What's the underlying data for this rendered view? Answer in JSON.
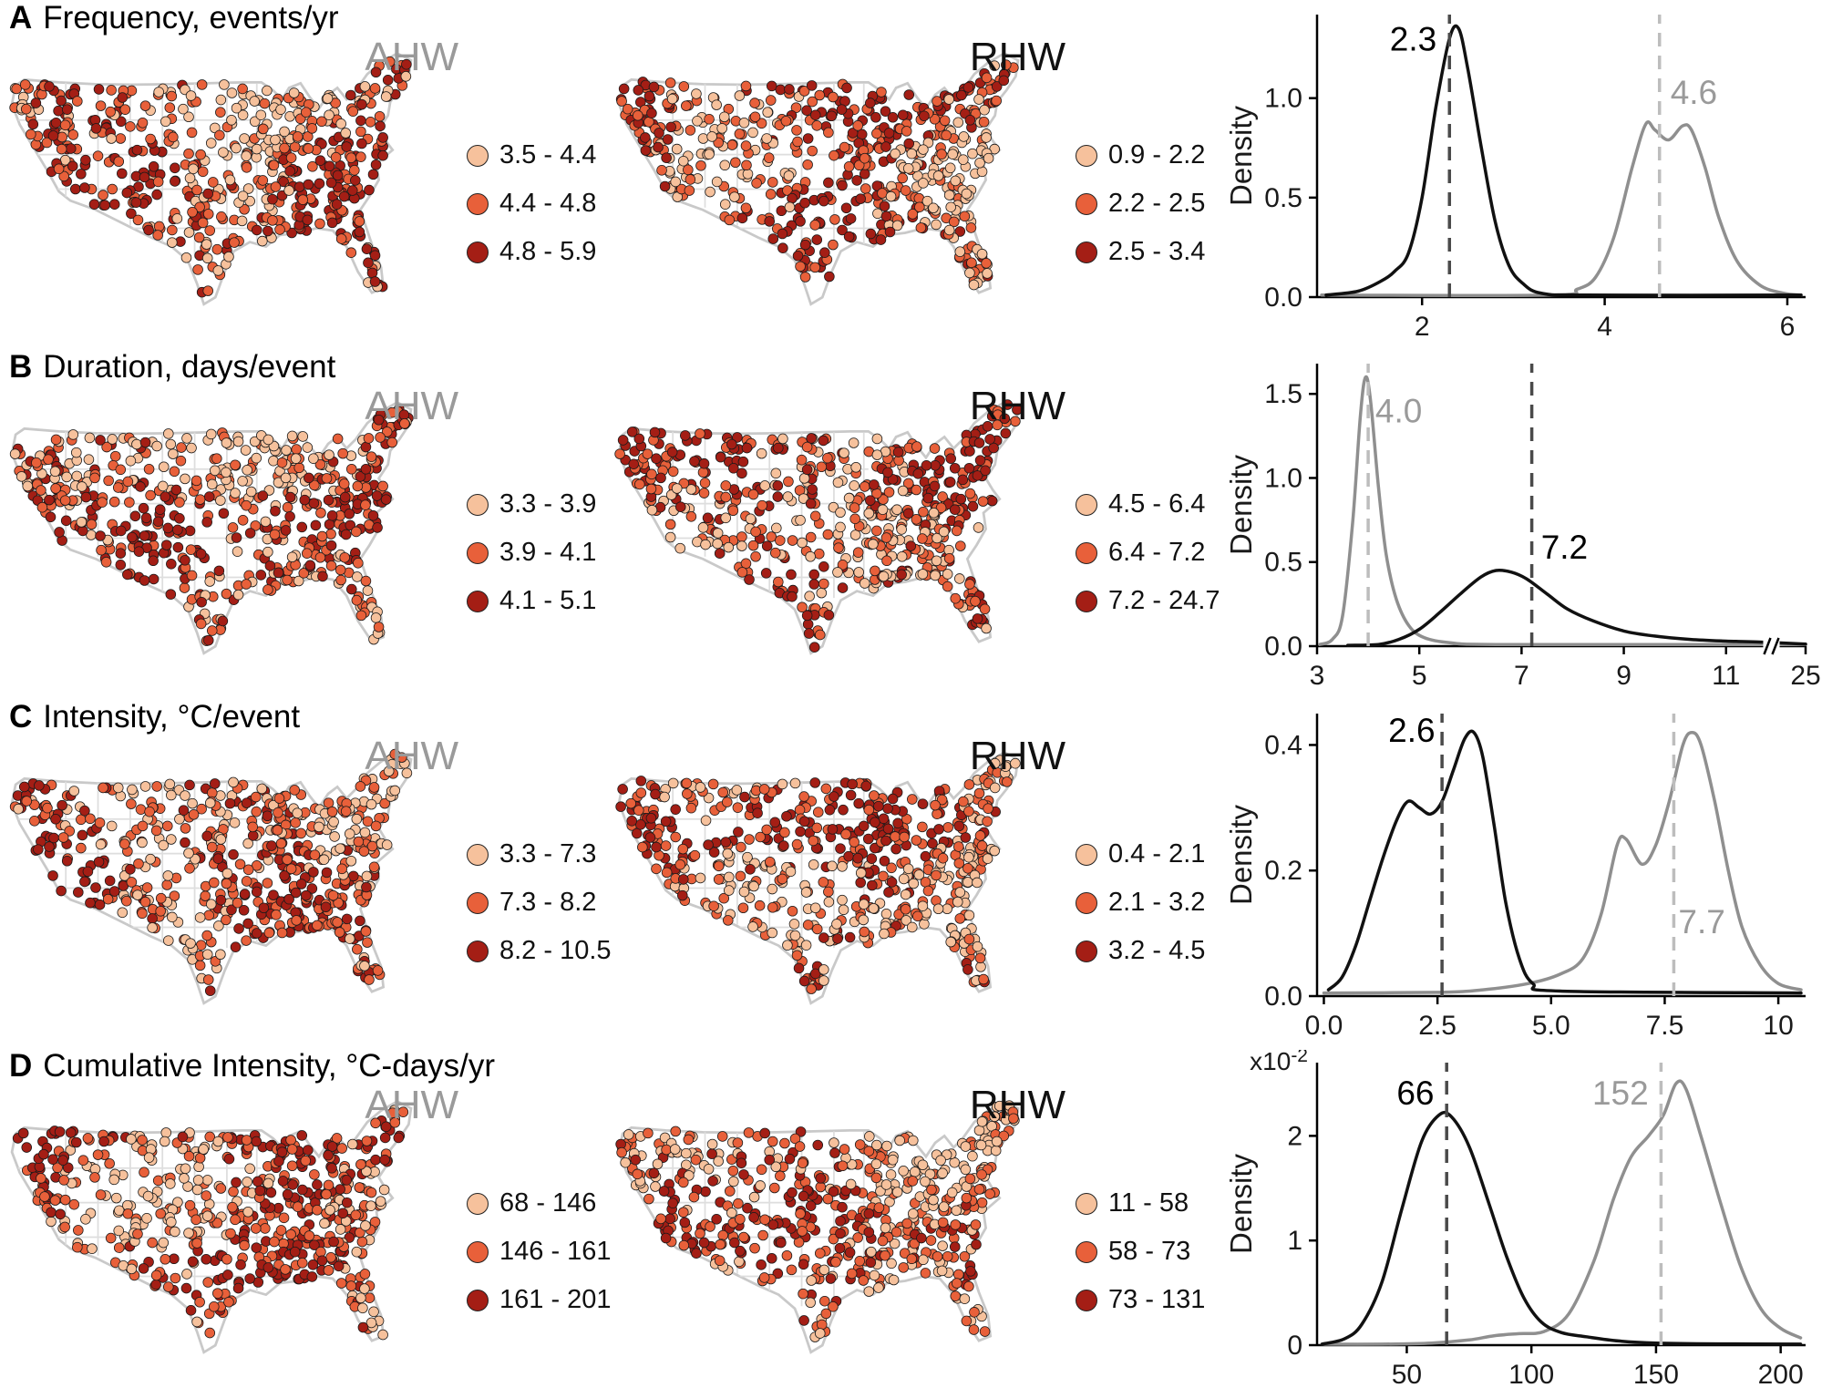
{
  "map_colors": {
    "light": "#F6C19C",
    "mid": "#E8603A",
    "dark": "#A41E15",
    "outline": "#c9c9c9",
    "state_lines": "#dedede"
  },
  "panels": [
    {
      "letter": "A",
      "title": "Frequency, events/yr",
      "maps": [
        {
          "label": "AHW",
          "label_color": "#9a9a9a",
          "legend": [
            "3.5 - 4.4",
            "4.4 - 4.8",
            "4.8 - 5.9"
          ]
        },
        {
          "label": "RHW",
          "label_color": "#111111",
          "legend": [
            "0.9 - 2.2",
            "2.2 - 2.5",
            "2.5 - 3.4"
          ]
        }
      ]
    },
    {
      "letter": "B",
      "title": "Duration, days/event",
      "maps": [
        {
          "label": "AHW",
          "label_color": "#9a9a9a",
          "legend": [
            "3.3 - 3.9",
            "3.9 - 4.1",
            "4.1 - 5.1"
          ]
        },
        {
          "label": "RHW",
          "label_color": "#111111",
          "legend": [
            "4.5 - 6.4",
            "6.4 - 7.2",
            "7.2 - 24.7"
          ]
        }
      ]
    },
    {
      "letter": "C",
      "title": "Intensity, °C/event",
      "maps": [
        {
          "label": "AHW",
          "label_color": "#9a9a9a",
          "legend": [
            "3.3 - 7.3",
            "7.3 - 8.2",
            "8.2 - 10.5"
          ]
        },
        {
          "label": "RHW",
          "label_color": "#111111",
          "legend": [
            "0.4 - 2.1",
            "2.1 - 3.2",
            "3.2 - 4.5"
          ]
        }
      ]
    },
    {
      "letter": "D",
      "title": "Cumulative Intensity, °C-days/yr",
      "maps": [
        {
          "label": "AHW",
          "label_color": "#9a9a9a",
          "legend": [
            "68 - 146",
            "146 - 161",
            "161 - 201"
          ]
        },
        {
          "label": "RHW",
          "label_color": "#111111",
          "legend": [
            "11 - 58",
            "58 - 73",
            "73 - 131"
          ]
        }
      ]
    }
  ],
  "chart_data": [
    {
      "panel": "A",
      "type": "line",
      "title": "Frequency, events/yr",
      "ylabel": "Density",
      "ymax": 1.42,
      "yticks": [
        {
          "v": 0,
          "t": "0.0"
        },
        {
          "v": 0.5,
          "t": "0.5"
        },
        {
          "v": 1,
          "t": "1.0"
        }
      ],
      "xlim": [
        0.85,
        6.2
      ],
      "xticks": [
        {
          "v": 2,
          "t": "2"
        },
        {
          "v": 4,
          "t": "4"
        },
        {
          "v": 6,
          "t": "6"
        }
      ],
      "series": [
        {
          "name": "AHW",
          "color": "#8f8f8f",
          "points": [
            [
              0.9,
              0.01
            ],
            [
              3.4,
              0.01
            ],
            [
              3.7,
              0.04
            ],
            [
              3.9,
              0.1
            ],
            [
              4.1,
              0.3
            ],
            [
              4.3,
              0.65
            ],
            [
              4.45,
              0.87
            ],
            [
              4.55,
              0.84
            ],
            [
              4.7,
              0.79
            ],
            [
              4.85,
              0.86
            ],
            [
              4.95,
              0.84
            ],
            [
              5.1,
              0.65
            ],
            [
              5.25,
              0.4
            ],
            [
              5.45,
              0.18
            ],
            [
              5.7,
              0.06
            ],
            [
              5.95,
              0.02
            ],
            [
              6.15,
              0.01
            ]
          ]
        },
        {
          "name": "RHW",
          "color": "#111111",
          "points": [
            [
              0.95,
              0.01
            ],
            [
              1.3,
              0.03
            ],
            [
              1.55,
              0.08
            ],
            [
              1.7,
              0.13
            ],
            [
              1.85,
              0.22
            ],
            [
              2.0,
              0.5
            ],
            [
              2.15,
              0.95
            ],
            [
              2.3,
              1.3
            ],
            [
              2.4,
              1.35
            ],
            [
              2.5,
              1.15
            ],
            [
              2.65,
              0.75
            ],
            [
              2.8,
              0.38
            ],
            [
              2.95,
              0.16
            ],
            [
              3.1,
              0.07
            ],
            [
              3.3,
              0.02
            ],
            [
              3.8,
              0.01
            ],
            [
              6.15,
              0.01
            ]
          ]
        }
      ],
      "means": [
        {
          "name": "RHW",
          "x": 2.3,
          "label": "2.3",
          "line_color": "#4a4a4a",
          "label_color": "#000000",
          "label_at": [
            2.16,
            1.24
          ],
          "anchor": "end"
        },
        {
          "name": "AHW",
          "x": 4.6,
          "label": "4.6",
          "line_color": "#bdbdbd",
          "label_color": "#9a9a9a",
          "label_at": [
            4.72,
            0.97
          ],
          "anchor": "start"
        }
      ]
    },
    {
      "panel": "B",
      "type": "line",
      "title": "Duration, days/event",
      "ylabel": "Density",
      "ymax": 1.68,
      "yticks": [
        {
          "v": 0,
          "t": "0.0"
        },
        {
          "v": 0.5,
          "t": "0.5"
        },
        {
          "v": 1,
          "t": "1.0"
        },
        {
          "v": 1.5,
          "t": "1.5"
        }
      ],
      "xsegs": [
        {
          "from": 3,
          "to": 11.6,
          "f0": 0,
          "f1": 0.9
        },
        {
          "from": 11.6,
          "to": 25,
          "f0": 0.9,
          "f1": 1
        }
      ],
      "xbreak_frac": 0.93,
      "xticks": [
        {
          "v": 3,
          "t": "3"
        },
        {
          "v": 5,
          "t": "5"
        },
        {
          "v": 7,
          "t": "7"
        },
        {
          "v": 9,
          "t": "9"
        },
        {
          "v": 11,
          "t": "11"
        },
        {
          "v": 25,
          "t": "25"
        }
      ],
      "series": [
        {
          "name": "AHW",
          "color": "#8f8f8f",
          "points": [
            [
              3.05,
              0.01
            ],
            [
              3.3,
              0.04
            ],
            [
              3.5,
              0.18
            ],
            [
              3.7,
              0.75
            ],
            [
              3.85,
              1.38
            ],
            [
              3.95,
              1.6
            ],
            [
              4.05,
              1.45
            ],
            [
              4.2,
              0.95
            ],
            [
              4.35,
              0.55
            ],
            [
              4.55,
              0.28
            ],
            [
              4.8,
              0.12
            ],
            [
              5.1,
              0.05
            ],
            [
              5.6,
              0.02
            ],
            [
              6.5,
              0.01
            ],
            [
              11.0,
              0.01
            ],
            [
              25,
              0.01
            ]
          ]
        },
        {
          "name": "RHW",
          "color": "#111111",
          "points": [
            [
              3.6,
              0.005
            ],
            [
              4.2,
              0.01
            ],
            [
              4.6,
              0.04
            ],
            [
              5.0,
              0.1
            ],
            [
              5.4,
              0.2
            ],
            [
              5.8,
              0.31
            ],
            [
              6.2,
              0.41
            ],
            [
              6.5,
              0.45
            ],
            [
              6.8,
              0.44
            ],
            [
              7.1,
              0.4
            ],
            [
              7.5,
              0.31
            ],
            [
              7.9,
              0.22
            ],
            [
              8.4,
              0.15
            ],
            [
              9.0,
              0.09
            ],
            [
              9.6,
              0.06
            ],
            [
              10.3,
              0.04
            ],
            [
              11.0,
              0.03
            ],
            [
              11.6,
              0.025
            ],
            [
              25,
              0.012
            ]
          ]
        }
      ],
      "means": [
        {
          "name": "AHW",
          "x": 4.0,
          "label": "4.0",
          "line_color": "#bdbdbd",
          "label_color": "#9a9a9a",
          "label_at": [
            4.14,
            1.33
          ],
          "anchor": "start"
        },
        {
          "name": "RHW",
          "x": 7.2,
          "label": "7.2",
          "line_color": "#4a4a4a",
          "label_color": "#000000",
          "label_at": [
            7.38,
            0.52
          ],
          "anchor": "start"
        }
      ]
    },
    {
      "panel": "C",
      "type": "line",
      "title": "Intensity, °C/event",
      "ylabel": "Density",
      "ymax": 0.45,
      "yticks": [
        {
          "v": 0,
          "t": "0.0"
        },
        {
          "v": 0.2,
          "t": "0.2"
        },
        {
          "v": 0.4,
          "t": "0.4"
        }
      ],
      "xlim": [
        -0.15,
        10.6
      ],
      "xticks": [
        {
          "v": 0,
          "t": "0.0"
        },
        {
          "v": 2.5,
          "t": "2.5"
        },
        {
          "v": 5,
          "t": "5.0"
        },
        {
          "v": 7.5,
          "t": "7.5"
        },
        {
          "v": 10,
          "t": "10"
        }
      ],
      "series": [
        {
          "name": "AHW",
          "color": "#8f8f8f",
          "points": [
            [
              0.0,
              0.005
            ],
            [
              2.5,
              0.006
            ],
            [
              3.5,
              0.01
            ],
            [
              4.5,
              0.02
            ],
            [
              5.2,
              0.035
            ],
            [
              5.7,
              0.06
            ],
            [
              6.1,
              0.13
            ],
            [
              6.45,
              0.24
            ],
            [
              6.65,
              0.25
            ],
            [
              7.0,
              0.21
            ],
            [
              7.3,
              0.24
            ],
            [
              7.6,
              0.31
            ],
            [
              7.9,
              0.4
            ],
            [
              8.1,
              0.42
            ],
            [
              8.3,
              0.4
            ],
            [
              8.6,
              0.31
            ],
            [
              8.9,
              0.2
            ],
            [
              9.2,
              0.11
            ],
            [
              9.6,
              0.05
            ],
            [
              10.0,
              0.02
            ],
            [
              10.5,
              0.01
            ]
          ]
        },
        {
          "name": "RHW",
          "color": "#111111",
          "points": [
            [
              0.1,
              0.01
            ],
            [
              0.4,
              0.03
            ],
            [
              0.7,
              0.08
            ],
            [
              1.0,
              0.15
            ],
            [
              1.3,
              0.22
            ],
            [
              1.6,
              0.28
            ],
            [
              1.85,
              0.31
            ],
            [
              2.1,
              0.3
            ],
            [
              2.35,
              0.29
            ],
            [
              2.6,
              0.31
            ],
            [
              2.85,
              0.36
            ],
            [
              3.1,
              0.41
            ],
            [
              3.3,
              0.42
            ],
            [
              3.5,
              0.38
            ],
            [
              3.75,
              0.27
            ],
            [
              4.0,
              0.15
            ],
            [
              4.3,
              0.06
            ],
            [
              4.6,
              0.02
            ],
            [
              5.2,
              0.008
            ],
            [
              10.5,
              0.005
            ]
          ]
        }
      ],
      "means": [
        {
          "name": "RHW",
          "x": 2.6,
          "label": "2.6",
          "line_color": "#4a4a4a",
          "label_color": "#000000",
          "label_at": [
            2.45,
            0.405
          ],
          "anchor": "end"
        },
        {
          "name": "AHW",
          "x": 7.7,
          "label": "7.7",
          "line_color": "#bdbdbd",
          "label_color": "#9a9a9a",
          "label_at": [
            7.8,
            0.1
          ],
          "anchor": "start"
        }
      ]
    },
    {
      "panel": "D",
      "type": "line",
      "title": "Cumulative Intensity, °C-days/yr",
      "ylabel": "Density",
      "ymax": 2.7,
      "y_exp": {
        "base": "x10",
        "sup": "-2"
      },
      "yticks": [
        {
          "v": 0,
          "t": "0"
        },
        {
          "v": 1,
          "t": "1"
        },
        {
          "v": 2,
          "t": "2"
        }
      ],
      "xlim": [
        14,
        210
      ],
      "xticks": [
        {
          "v": 50,
          "t": "50"
        },
        {
          "v": 100,
          "t": "100"
        },
        {
          "v": 150,
          "t": "150"
        },
        {
          "v": 200,
          "t": "200"
        }
      ],
      "series": [
        {
          "name": "AHW",
          "color": "#8f8f8f",
          "points": [
            [
              16,
              0.01
            ],
            [
              40,
              0.01
            ],
            [
              60,
              0.02
            ],
            [
              75,
              0.05
            ],
            [
              85,
              0.09
            ],
            [
              95,
              0.11
            ],
            [
              105,
              0.13
            ],
            [
              115,
              0.3
            ],
            [
              125,
              0.8
            ],
            [
              133,
              1.4
            ],
            [
              140,
              1.8
            ],
            [
              147,
              2.0
            ],
            [
              153,
              2.2
            ],
            [
              158,
              2.5
            ],
            [
              162,
              2.45
            ],
            [
              168,
              2.0
            ],
            [
              176,
              1.35
            ],
            [
              184,
              0.75
            ],
            [
              192,
              0.35
            ],
            [
              200,
              0.16
            ],
            [
              208,
              0.07
            ]
          ]
        },
        {
          "name": "RHW",
          "color": "#111111",
          "points": [
            [
              16,
              0.01
            ],
            [
              25,
              0.06
            ],
            [
              32,
              0.2
            ],
            [
              40,
              0.6
            ],
            [
              48,
              1.3
            ],
            [
              56,
              1.95
            ],
            [
              63,
              2.2
            ],
            [
              68,
              2.18
            ],
            [
              75,
              1.9
            ],
            [
              83,
              1.35
            ],
            [
              90,
              0.85
            ],
            [
              97,
              0.45
            ],
            [
              104,
              0.22
            ],
            [
              112,
              0.12
            ],
            [
              122,
              0.08
            ],
            [
              135,
              0.04
            ],
            [
              150,
              0.02
            ],
            [
              175,
              0.012
            ],
            [
              208,
              0.01
            ]
          ]
        }
      ],
      "means": [
        {
          "name": "RHW",
          "x": 66,
          "label": "66",
          "line_color": "#4a4a4a",
          "label_color": "#000000",
          "label_at": [
            61,
            2.3
          ],
          "anchor": "end"
        },
        {
          "name": "AHW",
          "x": 152,
          "label": "152",
          "line_color": "#bdbdbd",
          "label_color": "#9a9a9a",
          "label_at": [
            147,
            2.3
          ],
          "anchor": "end"
        }
      ]
    }
  ]
}
